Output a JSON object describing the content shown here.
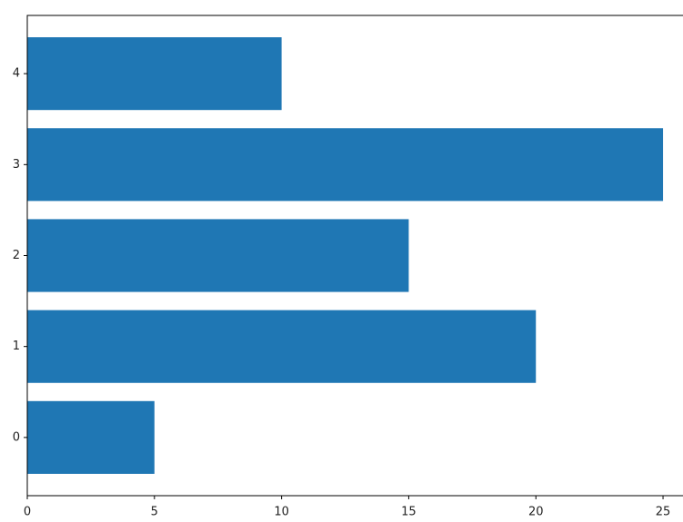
{
  "chart_data": {
    "type": "barh",
    "y": [
      0,
      1,
      2,
      3,
      4
    ],
    "values": [
      5,
      20,
      15,
      25,
      10
    ],
    "color": "#1f77b4",
    "xlim": [
      0,
      26.25
    ],
    "xticks": [
      0,
      5,
      10,
      15,
      20,
      25
    ],
    "ylim": [
      -0.64,
      4.64
    ],
    "yticks": [
      0,
      1,
      2,
      3,
      4
    ],
    "grid": false
  }
}
